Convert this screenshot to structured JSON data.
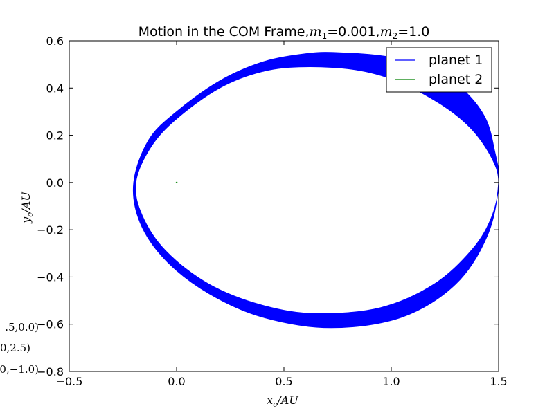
{
  "chart_data": {
    "type": "line",
    "title": "Motion in the COM Frame,$m_1=0.001$,$m_2=1.0$",
    "title_parts": {
      "prefix": "Motion in the COM Frame,",
      "m1_name": "m",
      "m1_sub": "1",
      "m1_val": "=0.001",
      "sep": ",",
      "m2_name": "m",
      "m2_sub": "2",
      "m2_val": "=1.0"
    },
    "xlabel": "x_c/AU",
    "xlabel_parts": {
      "var": "x",
      "sub": "c",
      "rest": "/AU"
    },
    "ylabel": "y_c/AU",
    "ylabel_parts": {
      "var": "y",
      "sub": "c",
      "rest": "/AU"
    },
    "xlim": [
      -0.5,
      1.5
    ],
    "ylim": [
      -0.8,
      0.6
    ],
    "xticks": [
      "−0.5",
      "0.0",
      "0.5",
      "1.0",
      "1.5"
    ],
    "xtick_values": [
      -0.5,
      0.0,
      0.5,
      1.0,
      1.5
    ],
    "yticks": [
      "−0.8",
      "−0.6",
      "−0.4",
      "−0.2",
      "0.0",
      "0.2",
      "0.4",
      "0.6"
    ],
    "ytick_values": [
      -0.8,
      -0.6,
      -0.4,
      -0.2,
      0.0,
      0.2,
      0.4,
      0.6
    ],
    "grid": false,
    "legend_position": "top-right",
    "series": [
      {
        "name": "planet 1",
        "color": "#0000ff",
        "description": "precessing elliptical orbit drawn as a filled band",
        "outer_boundary": [
          [
            1.5,
            0.0
          ],
          [
            1.48,
            0.14
          ],
          [
            1.44,
            0.27
          ],
          [
            1.35,
            0.38
          ],
          [
            1.22,
            0.47
          ],
          [
            1.0,
            0.53
          ],
          [
            0.75,
            0.55
          ],
          [
            0.6,
            0.545
          ],
          [
            0.4,
            0.51
          ],
          [
            0.2,
            0.43
          ],
          [
            0.0,
            0.3
          ],
          [
            -0.13,
            0.18
          ],
          [
            -0.2,
            0.0
          ],
          [
            -0.17,
            -0.17
          ],
          [
            -0.05,
            -0.33
          ],
          [
            0.15,
            -0.47
          ],
          [
            0.4,
            -0.57
          ],
          [
            0.72,
            -0.615
          ],
          [
            1.05,
            -0.57
          ],
          [
            1.3,
            -0.43
          ],
          [
            1.45,
            -0.22
          ],
          [
            1.5,
            0.0
          ]
        ],
        "inner_boundary": [
          [
            1.5,
            0.0
          ],
          [
            1.47,
            0.1
          ],
          [
            1.38,
            0.22
          ],
          [
            1.25,
            0.32
          ],
          [
            1.05,
            0.42
          ],
          [
            0.85,
            0.475
          ],
          [
            0.6,
            0.49
          ],
          [
            0.4,
            0.47
          ],
          [
            0.2,
            0.4
          ],
          [
            0.0,
            0.27
          ],
          [
            -0.12,
            0.15
          ],
          [
            -0.19,
            0.0
          ],
          [
            -0.16,
            -0.14
          ],
          [
            -0.05,
            -0.29
          ],
          [
            0.15,
            -0.43
          ],
          [
            0.4,
            -0.52
          ],
          [
            0.65,
            -0.555
          ],
          [
            0.95,
            -0.53
          ],
          [
            1.2,
            -0.43
          ],
          [
            1.38,
            -0.28
          ],
          [
            1.47,
            -0.14
          ],
          [
            1.5,
            0.0
          ]
        ]
      },
      {
        "name": "planet 2",
        "color": "#008000",
        "points": [
          [
            -0.003,
            -0.002
          ],
          [
            0.0,
            0.001
          ],
          [
            0.003,
            0.003
          ],
          [
            0.0,
            0.0
          ]
        ]
      }
    ],
    "clipped_left_annotations": [
      ".5,0.0)",
      "0,2.5)",
      "0,−1.0)"
    ]
  }
}
